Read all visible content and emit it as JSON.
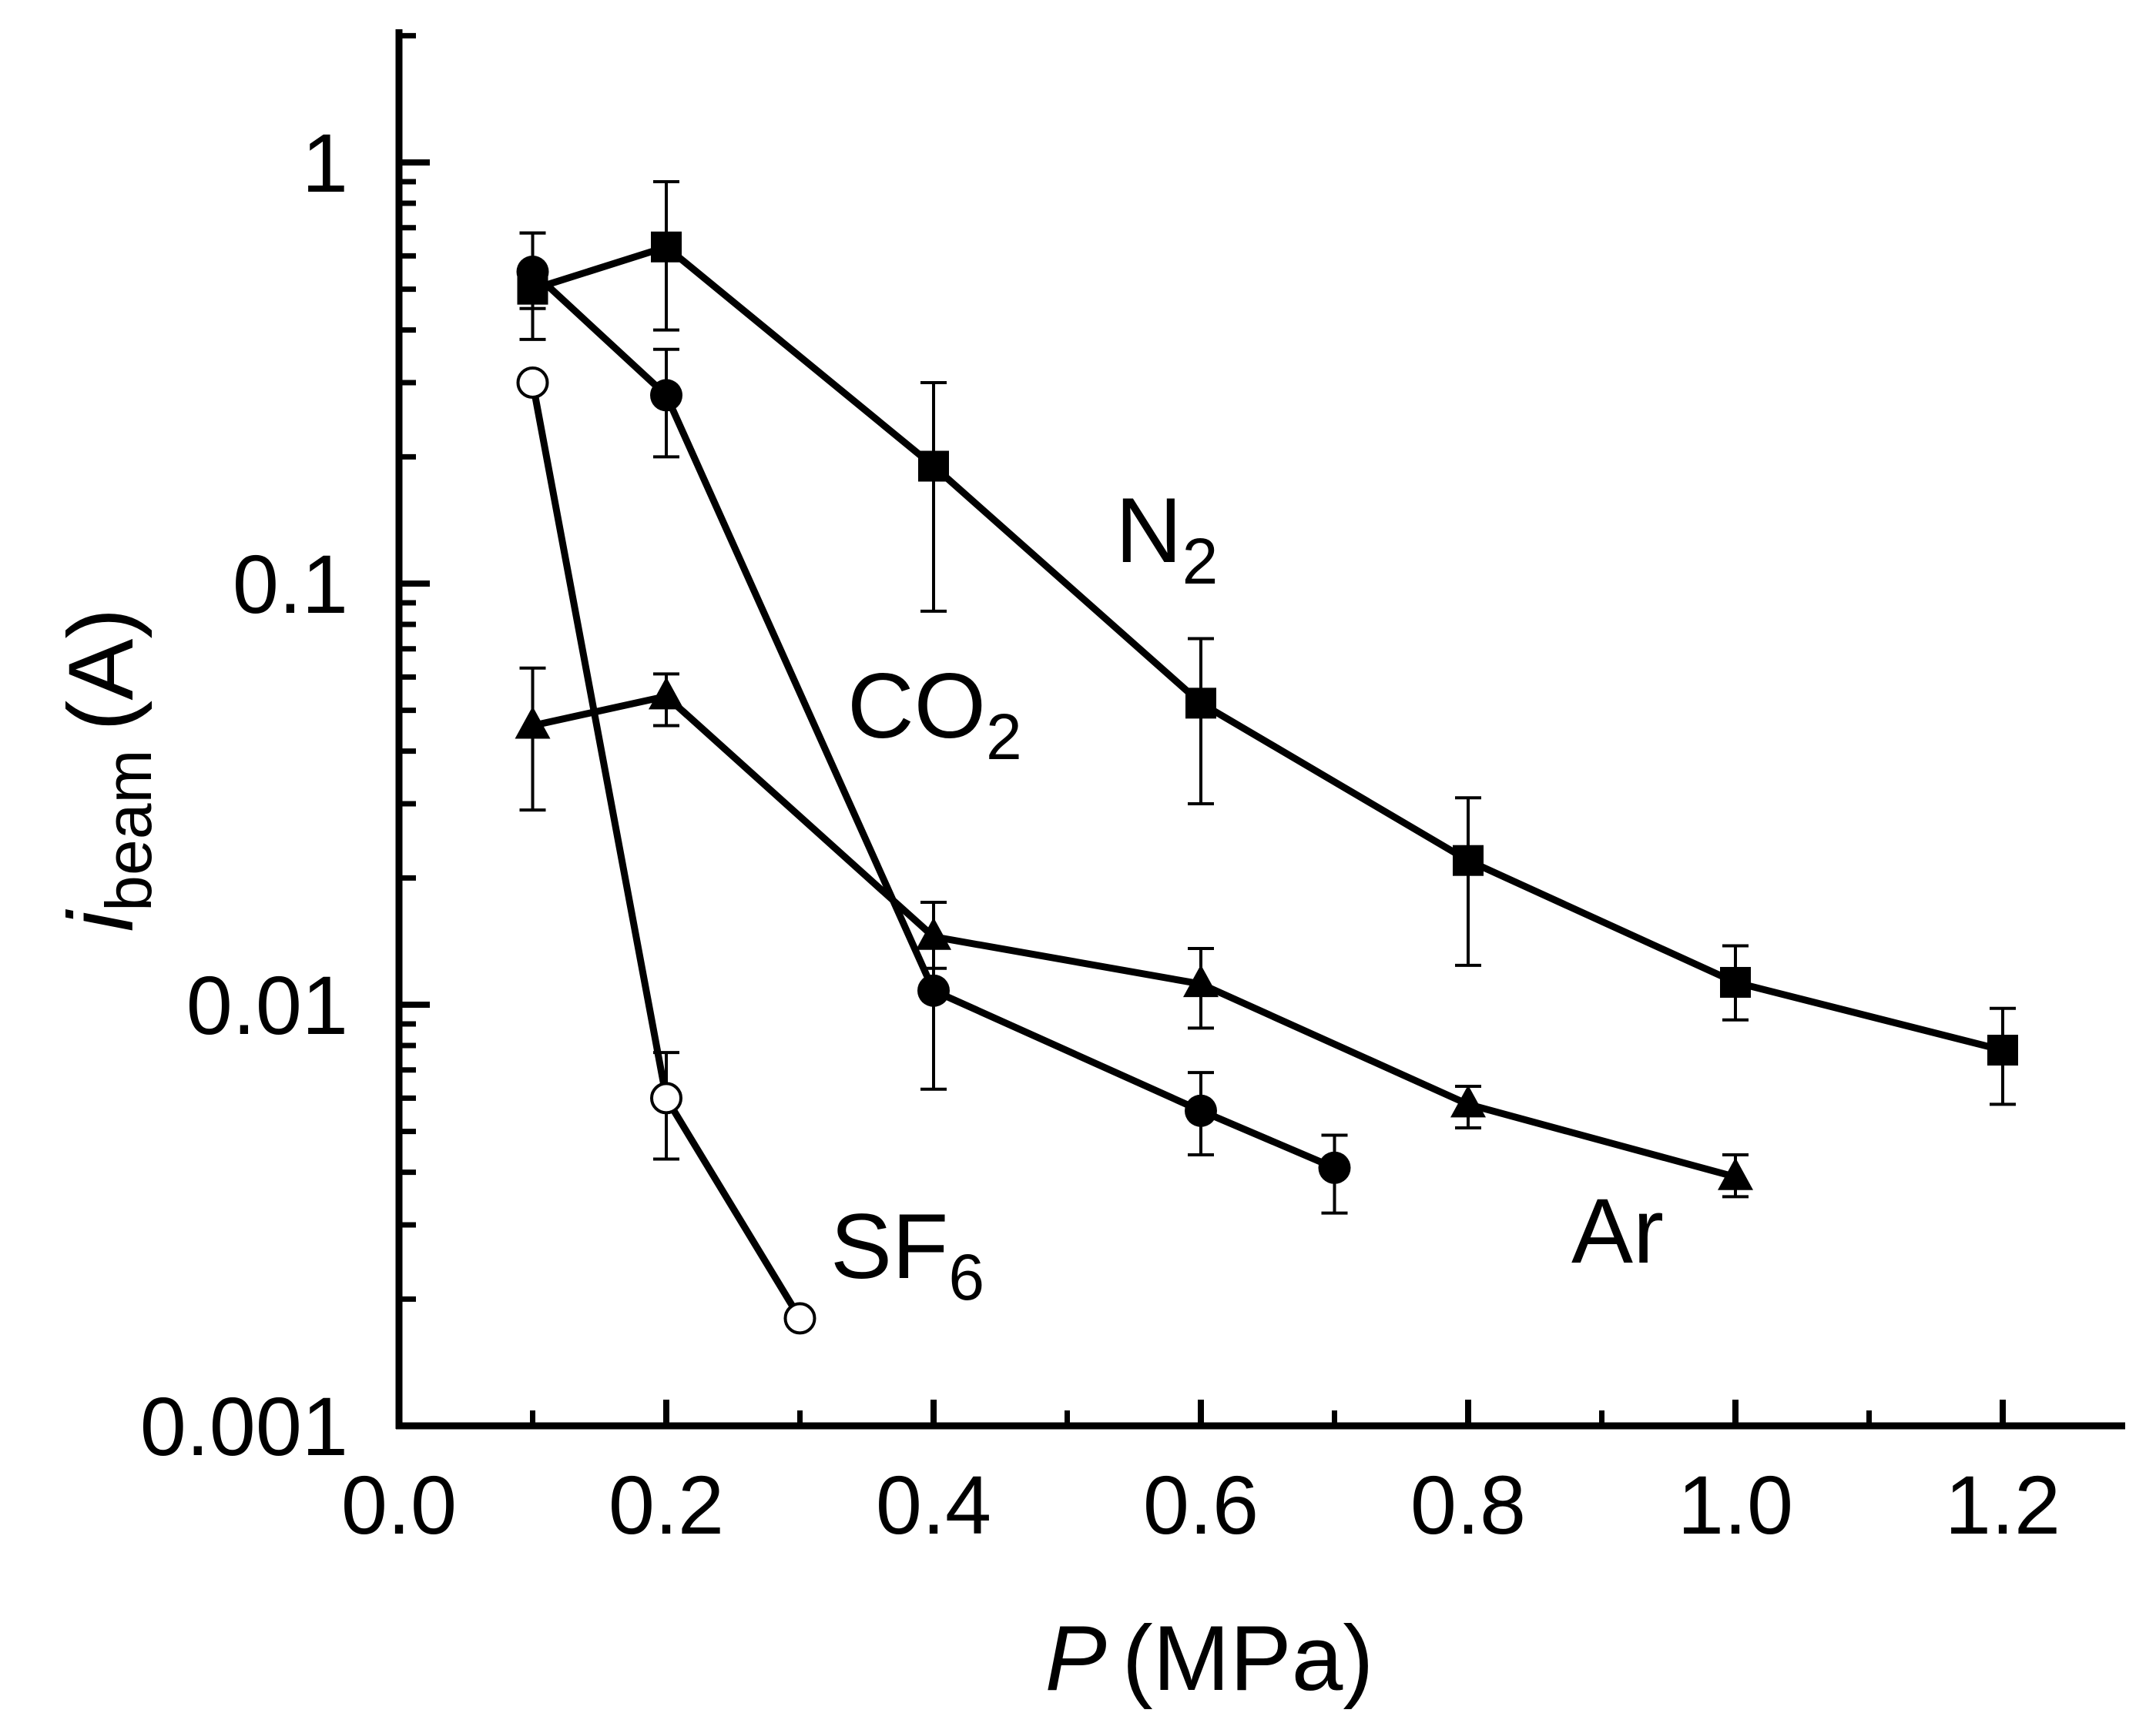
{
  "chart_data": {
    "type": "line",
    "title": "",
    "xlabel": "P (MPa)",
    "xlabel_parts": {
      "symbol": "P",
      "unit": "(MPa)"
    },
    "ylabel": "i_beam (A)",
    "ylabel_parts": {
      "symbol": "i",
      "subscript": "beam",
      "unit": "(A)"
    },
    "xscale": "linear",
    "yscale": "log",
    "xlim": [
      0.0,
      1.3
    ],
    "ylim": [
      0.001,
      2
    ],
    "xticks": [
      0.0,
      0.2,
      0.4,
      0.6,
      0.8,
      1.0,
      1.2
    ],
    "xtick_labels": [
      "0.0",
      "0.2",
      "0.4",
      "0.6",
      "0.8",
      "1.0",
      "1.2"
    ],
    "xticks_minor": [
      0.1,
      0.3,
      0.5,
      0.7,
      0.9,
      1.1
    ],
    "yticks": [
      0.001,
      0.01,
      0.1,
      1
    ],
    "ytick_labels": [
      "0.001",
      "0.01",
      "0.1",
      "1"
    ],
    "grid": false,
    "legend": "none (series labelled inline)",
    "series": [
      {
        "name": "N2",
        "label": "N",
        "label_sub": "2",
        "marker": "square-filled",
        "x": [
          0.1,
          0.2,
          0.4,
          0.6,
          0.8,
          1.0,
          1.2
        ],
        "y": [
          0.5,
          0.63,
          0.19,
          0.052,
          0.022,
          0.0113,
          0.0078
        ],
        "err_low": [
          0.38,
          0.4,
          0.086,
          0.03,
          0.0124,
          0.0092,
          0.0058
        ],
        "err_high": [
          0.68,
          0.9,
          0.3,
          0.074,
          0.031,
          0.0138,
          0.0098
        ]
      },
      {
        "name": "CO2",
        "label": "CO",
        "label_sub": "2",
        "marker": "circle-filled",
        "x": [
          0.1,
          0.2,
          0.4,
          0.6,
          0.7
        ],
        "y": [
          0.55,
          0.28,
          0.0108,
          0.0056,
          0.0041
        ],
        "err_low": [
          0.45,
          0.2,
          0.0063,
          0.0044,
          0.0032
        ],
        "err_high": [
          0.68,
          0.36,
          0.0175,
          0.0069,
          0.0049
        ]
      },
      {
        "name": "Ar",
        "label": "Ar",
        "label_sub": "",
        "marker": "triangle-filled",
        "x": [
          0.1,
          0.2,
          0.4,
          0.6,
          0.8,
          1.0
        ],
        "y": [
          0.046,
          0.054,
          0.0145,
          0.0112,
          0.0058,
          0.0039
        ],
        "err_low": [
          0.029,
          0.046,
          0.0122,
          0.0088,
          0.0051,
          0.0035
        ],
        "err_high": [
          0.063,
          0.061,
          0.0175,
          0.0136,
          0.0064,
          0.0044
        ]
      },
      {
        "name": "SF6",
        "label": "SF",
        "label_sub": "6",
        "marker": "circle-open",
        "x": [
          0.1,
          0.2,
          0.3
        ],
        "y": [
          0.3,
          0.006,
          0.0018
        ],
        "err_low": [
          0.3,
          0.0043,
          0.0018
        ],
        "err_high": [
          0.3,
          0.0077,
          0.0018
        ]
      }
    ]
  }
}
